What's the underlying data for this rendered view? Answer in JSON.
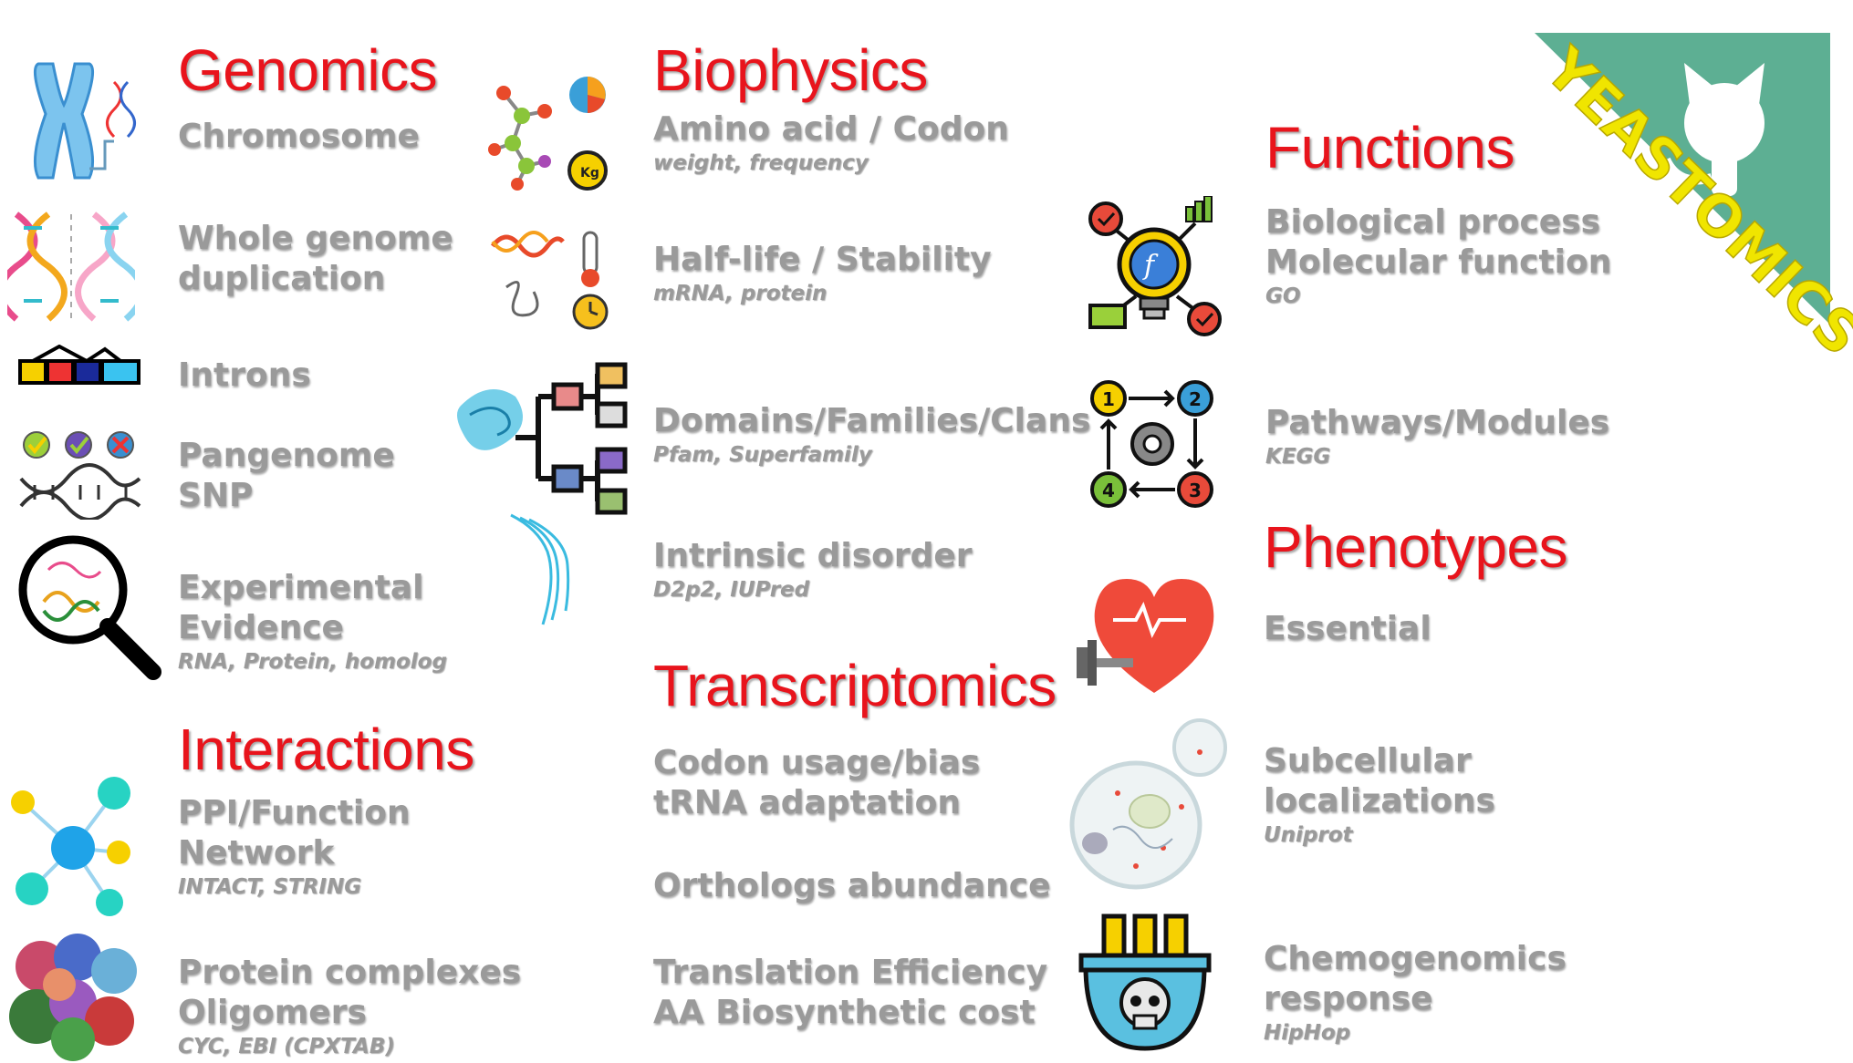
{
  "banner": {
    "text": "YEASTOMICS",
    "color": "#5daf93",
    "text_color": "#f0e500"
  },
  "colors": {
    "heading": "#e8141c",
    "item": "#9a9a9a"
  },
  "sections": {
    "genomics": {
      "title": "Genomics",
      "items": [
        {
          "lines": [
            "Chromosome"
          ],
          "sub": ""
        },
        {
          "lines": [
            "Whole genome",
            "duplication"
          ],
          "sub": ""
        },
        {
          "lines": [
            "Introns"
          ],
          "sub": ""
        },
        {
          "lines": [
            "Pangenome",
            "SNP"
          ],
          "sub": ""
        },
        {
          "lines": [
            "Experimental",
            "Evidence"
          ],
          "sub": "RNA, Protein, homolog"
        }
      ]
    },
    "interactions": {
      "title": "Interactions",
      "items": [
        {
          "lines": [
            "PPI/Function",
            "Network"
          ],
          "sub": "INTACT, STRING"
        },
        {
          "lines": [
            "Protein complexes",
            "Oligomers"
          ],
          "sub": "CYC, EBI (CPXTAB)"
        }
      ]
    },
    "biophysics": {
      "title": "Biophysics",
      "items": [
        {
          "lines": [
            "Amino acid / Codon"
          ],
          "sub": "weight, frequency"
        },
        {
          "lines": [
            "Half-life / Stability"
          ],
          "sub": "mRNA, protein"
        },
        {
          "lines": [
            "Domains/Families/Clans"
          ],
          "sub": "Pfam, Superfamily"
        },
        {
          "lines": [
            "Intrinsic disorder"
          ],
          "sub": "D2p2, IUPred"
        }
      ]
    },
    "transcriptomics": {
      "title": "Transcriptomics",
      "items": [
        {
          "lines": [
            "Codon usage/bias",
            "tRNA adaptation"
          ],
          "sub": ""
        },
        {
          "lines": [
            "Orthologs abundance"
          ],
          "sub": ""
        },
        {
          "lines": [
            "Translation Efficiency",
            "AA Biosynthetic cost"
          ],
          "sub": ""
        }
      ]
    },
    "functions": {
      "title": "Functions",
      "items": [
        {
          "lines": [
            "Biological process",
            "Molecular function"
          ],
          "sub": "GO"
        },
        {
          "lines": [
            "Pathways/Modules"
          ],
          "sub": "KEGG"
        }
      ]
    },
    "phenotypes": {
      "title": "Phenotypes",
      "items": [
        {
          "lines": [
            "Essential"
          ],
          "sub": ""
        },
        {
          "lines": [
            "Subcellular",
            "localizations"
          ],
          "sub": "Uniprot"
        },
        {
          "lines": [
            "Chemogenomics",
            "response"
          ],
          "sub": "HipHop"
        }
      ]
    }
  },
  "icons": {
    "chromosome": "chromosome-icon",
    "wgd": "dna-duplication-icon",
    "introns": "introns-icon",
    "pangenome": "pangenome-snp-icon",
    "evidence": "magnifier-dna-icon",
    "network": "network-icon",
    "complexes": "protein-complex-icon",
    "molecule": "molecule-icon",
    "halflife": "stability-icon",
    "domains": "domain-tree-icon",
    "disorder": "disorder-icon",
    "functions": "function-bulb-icon",
    "pathways": "pathway-cycle-icon",
    "heart": "heart-dumbbell-icon",
    "cell": "yeast-cell-icon",
    "toxic": "toxic-tubes-icon"
  }
}
